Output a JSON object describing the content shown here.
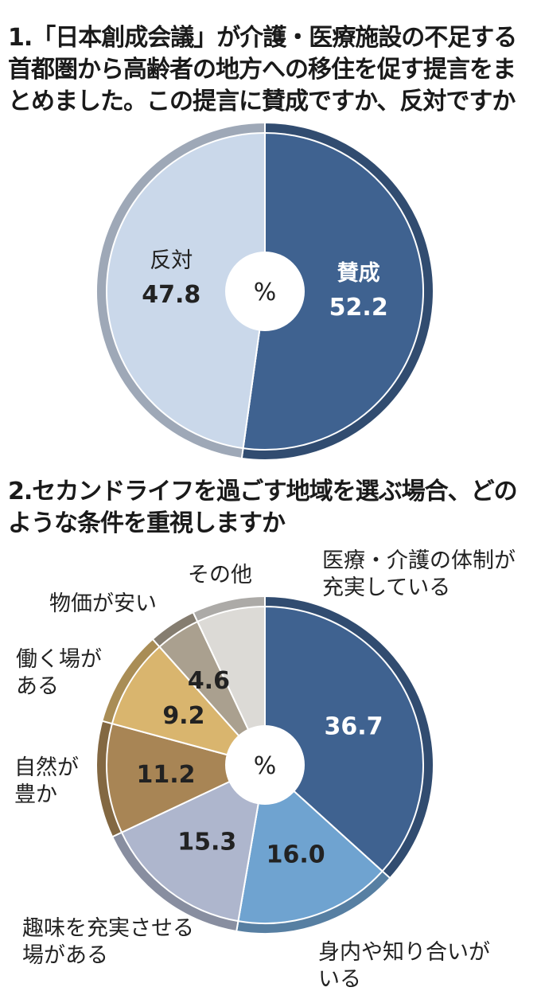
{
  "q1": {
    "number": "1.",
    "text": "「日本創成会議」が介護・医療施設の不足する首都圏から高齢者の地方への移住を促す提言をまとめました。この提言に賛成ですか、反対ですか"
  },
  "q2": {
    "number": "2.",
    "text": "セカンドライフを過ごす地域を選ぶ場合、どのような条件を重視しますか"
  },
  "colors": {
    "navy": "#3f6290",
    "light_blue": "#6fa3d0",
    "lavender": "#aeb6cd",
    "brown": "#a88555",
    "gold": "#d9b56e",
    "gray_brown": "#aaa08f",
    "light_gray": "#dcdad6",
    "pale_blue": "#cad8ea"
  },
  "chart_data": [
    {
      "type": "pie",
      "center_label": "%",
      "slices": [
        {
          "label": "賛成",
          "value": 52.2,
          "value_text": "52.2",
          "color": "#3f6290"
        },
        {
          "label": "反対",
          "value": 47.8,
          "value_text": "47.8",
          "color": "#cad8ea"
        }
      ]
    },
    {
      "type": "pie",
      "center_label": "%",
      "slices": [
        {
          "label": "医療・介護の体制が充実している",
          "label_lines": [
            "医療・介護の体制が",
            "充実している"
          ],
          "value": 36.7,
          "value_text": "36.7",
          "color": "#3f6290"
        },
        {
          "label": "身内や知り合いがいる",
          "label_lines": [
            "身内や知り合いが",
            "いる"
          ],
          "value": 16.0,
          "value_text": "16.0",
          "color": "#6fa3d0"
        },
        {
          "label": "趣味を充実させる場がある",
          "label_lines": [
            "趣味を充実させる",
            "場がある"
          ],
          "value": 15.3,
          "value_text": "15.3",
          "color": "#aeb6cd"
        },
        {
          "label": "自然が豊か",
          "label_lines": [
            "自然が",
            "豊か"
          ],
          "value": 11.2,
          "value_text": "11.2",
          "color": "#a88555"
        },
        {
          "label": "働く場がある",
          "label_lines": [
            "働く場が",
            "ある"
          ],
          "value": 9.2,
          "value_text": "9.2",
          "color": "#d9b56e"
        },
        {
          "label": "物価が安い",
          "label_lines": [
            "物価が安い"
          ],
          "value": 4.6,
          "value_text": "4.6",
          "color": "#aaa08f"
        },
        {
          "label": "その他",
          "label_lines": [
            "その他"
          ],
          "value": 7.0,
          "value_text": "",
          "color": "#dcdad6"
        }
      ]
    }
  ]
}
